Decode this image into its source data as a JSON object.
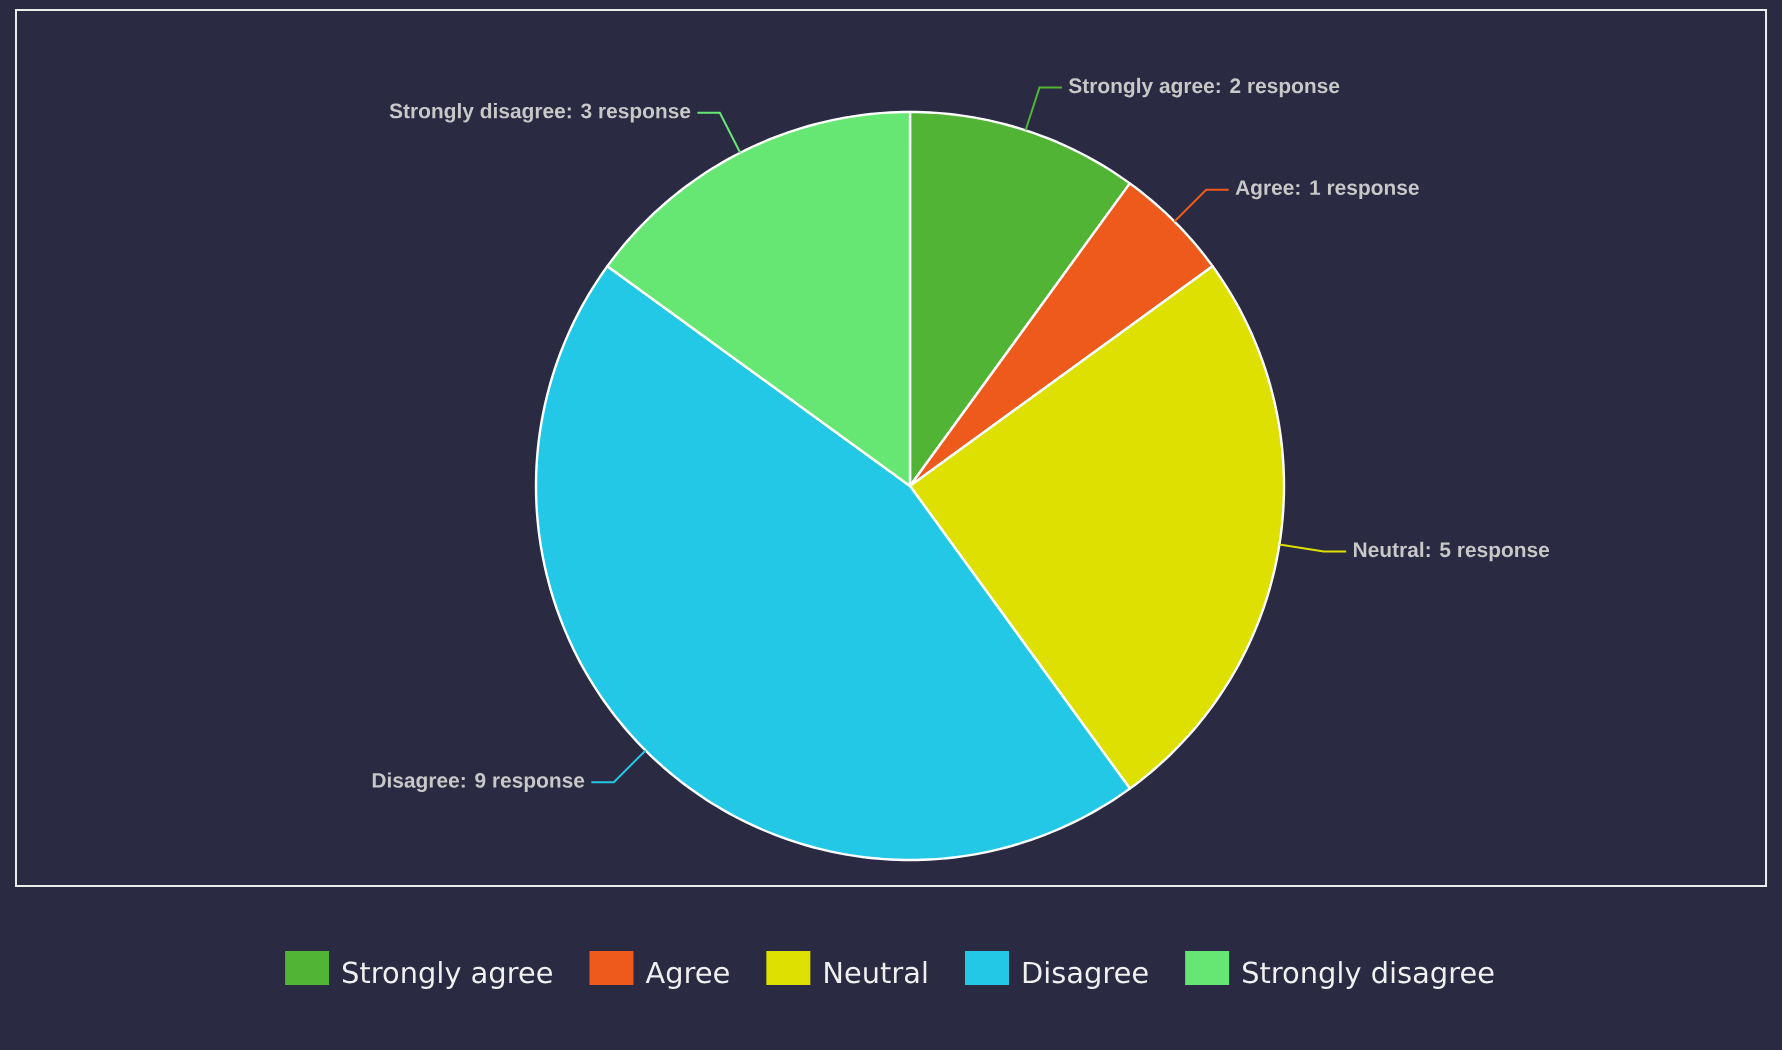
{
  "chart_data": {
    "type": "pie",
    "categories": [
      "Strongly agree",
      "Agree",
      "Neutral",
      "Disagree",
      "Strongly disagree"
    ],
    "values": [
      2,
      1,
      5,
      9,
      3
    ],
    "colors": [
      "#52b435",
      "#ee5a1c",
      "#dde000",
      "#22c8e5",
      "#66e673"
    ],
    "value_labels": [
      "Strongly agree: 2 response",
      "Agree: 1 response",
      "Neutral: 5 response",
      "Disagree: 9 response",
      "Strongly disagree: 3 response"
    ],
    "legend": "bottom"
  }
}
